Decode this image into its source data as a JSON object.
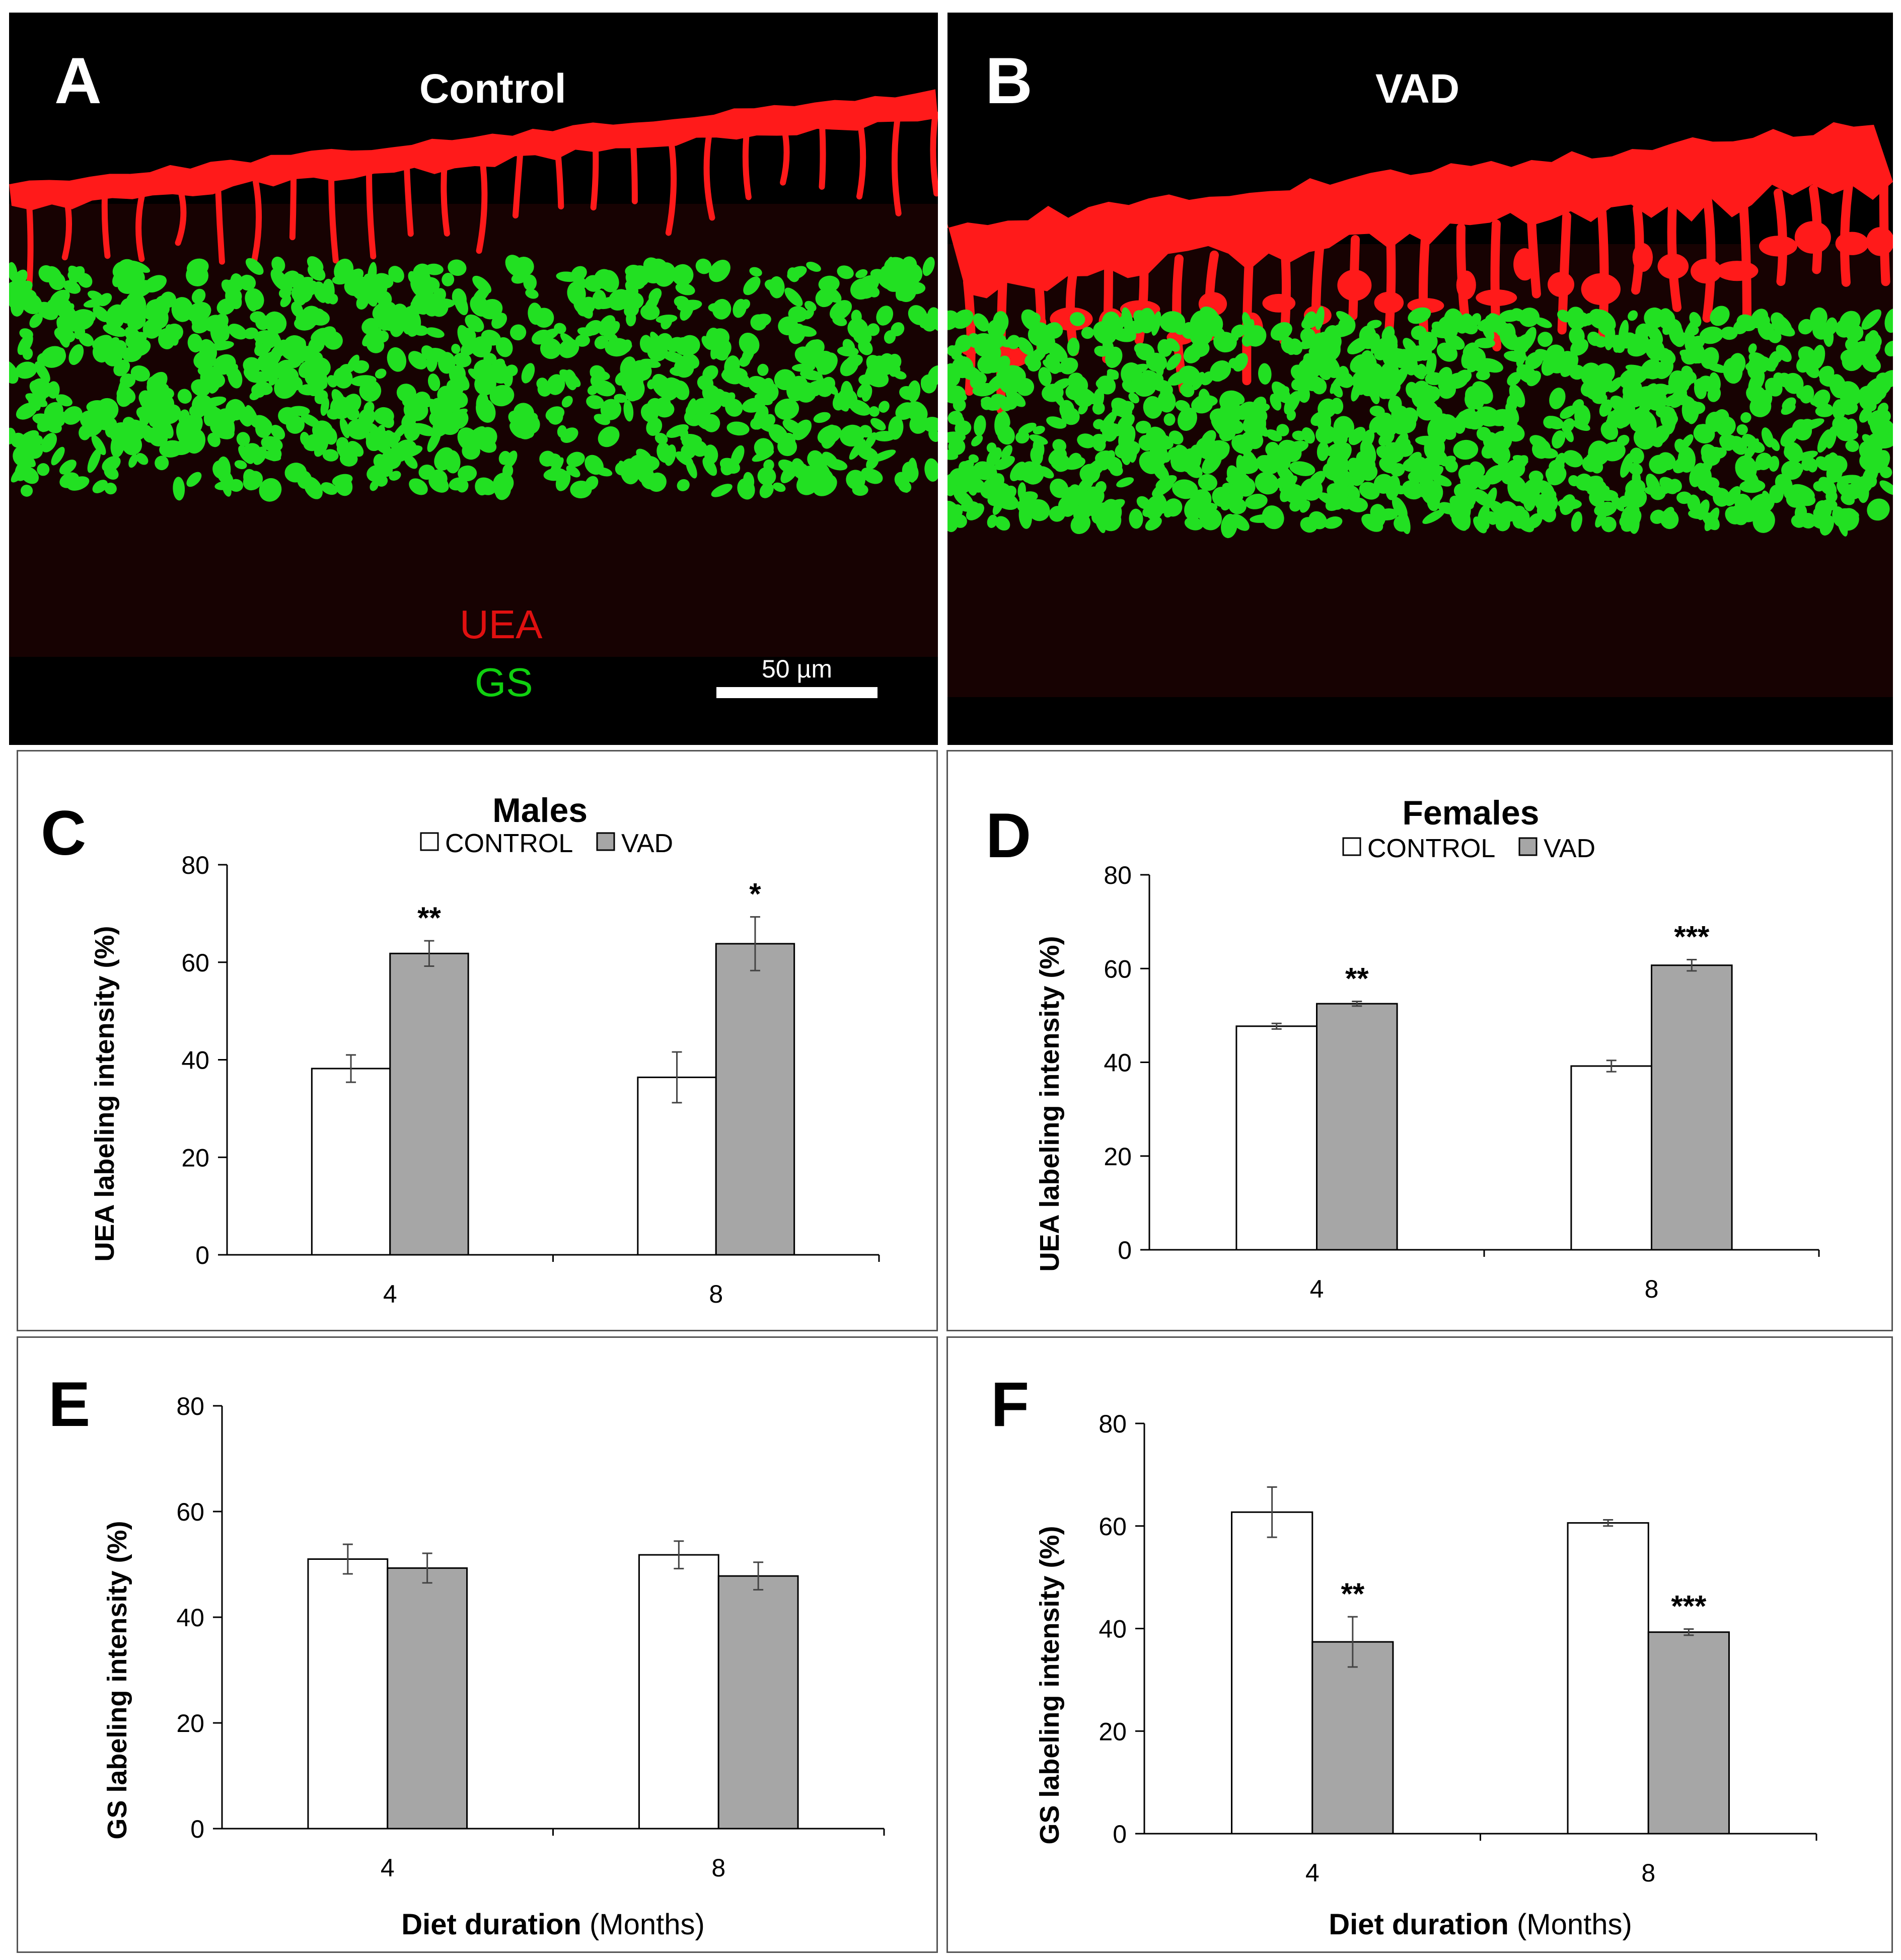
{
  "images": {
    "A": {
      "letter": "A",
      "title": "Control",
      "legend_uea": "UEA",
      "legend_gs": "GS",
      "scale_label": "50 µm",
      "colors": {
        "red": "#ff1a1a",
        "green": "#22e022"
      }
    },
    "B": {
      "letter": "B",
      "title": "VAD"
    }
  },
  "chart_data": [
    {
      "panel": "C",
      "type": "bar",
      "title": "Males",
      "ylabel": "UEA labeling intensity (%)",
      "xlabel": "",
      "categories": [
        "4",
        "8"
      ],
      "ylim": [
        0,
        80
      ],
      "yticks": [
        0,
        20,
        40,
        60,
        80
      ],
      "legend": [
        "CONTROL",
        "VAD"
      ],
      "series": [
        {
          "name": "CONTROL",
          "values": [
            38.2,
            36.4
          ],
          "errors": [
            2.8,
            5.2
          ],
          "color": "#ffffff"
        },
        {
          "name": "VAD",
          "values": [
            61.8,
            63.8
          ],
          "errors": [
            2.6,
            5.5
          ],
          "color": "#a6a6a6"
        }
      ],
      "significance": [
        [
          "",
          "**"
        ],
        [
          "",
          "*"
        ]
      ]
    },
    {
      "panel": "D",
      "type": "bar",
      "title": "Females",
      "ylabel": "UEA labeling intensity (%)",
      "xlabel": "",
      "categories": [
        "4",
        "8"
      ],
      "ylim": [
        0,
        80
      ],
      "yticks": [
        0,
        20,
        40,
        60,
        80
      ],
      "legend": [
        "CONTROL",
        "VAD"
      ],
      "series": [
        {
          "name": "CONTROL",
          "values": [
            47.7,
            39.2
          ],
          "errors": [
            0.6,
            1.2
          ],
          "color": "#ffffff"
        },
        {
          "name": "VAD",
          "values": [
            52.5,
            60.7
          ],
          "errors": [
            0.5,
            1.2
          ],
          "color": "#a6a6a6"
        }
      ],
      "significance": [
        [
          "",
          "**"
        ],
        [
          "",
          "***"
        ]
      ]
    },
    {
      "panel": "E",
      "type": "bar",
      "title": "",
      "ylabel": "GS labeling intensity (%)",
      "xlabel": "Diet duration",
      "xlabel_suffix": " (Months)",
      "categories": [
        "4",
        "8"
      ],
      "ylim": [
        0,
        80
      ],
      "yticks": [
        0,
        20,
        40,
        60,
        80
      ],
      "legend": [],
      "series": [
        {
          "name": "CONTROL",
          "values": [
            51.0,
            51.8
          ],
          "errors": [
            2.8,
            2.6
          ],
          "color": "#ffffff"
        },
        {
          "name": "VAD",
          "values": [
            49.3,
            47.8
          ],
          "errors": [
            2.8,
            2.6
          ],
          "color": "#a6a6a6"
        }
      ],
      "significance": [
        [
          "",
          ""
        ],
        [
          "",
          ""
        ]
      ]
    },
    {
      "panel": "F",
      "type": "bar",
      "title": "",
      "ylabel": "GS labeling intensity (%)",
      "xlabel": "Diet duration",
      "xlabel_suffix": " (Months)",
      "categories": [
        "4",
        "8"
      ],
      "ylim": [
        0,
        80
      ],
      "yticks": [
        0,
        20,
        40,
        60,
        80
      ],
      "legend": [],
      "series": [
        {
          "name": "CONTROL",
          "values": [
            62.7,
            60.6
          ],
          "errors": [
            4.9,
            0.6
          ],
          "color": "#ffffff"
        },
        {
          "name": "VAD",
          "values": [
            37.4,
            39.3
          ],
          "errors": [
            4.9,
            0.6
          ],
          "color": "#a6a6a6"
        }
      ],
      "significance": [
        [
          "",
          "**"
        ],
        [
          "",
          "***"
        ]
      ]
    }
  ]
}
